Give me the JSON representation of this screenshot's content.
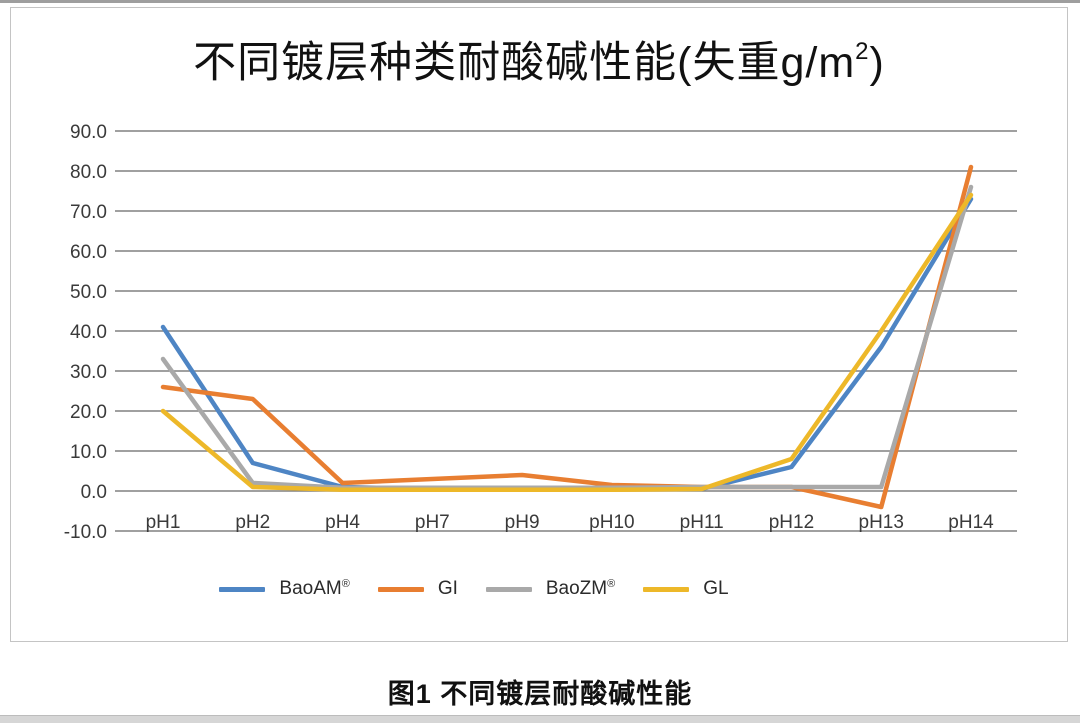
{
  "page": {
    "title_main": "不同镀层种类耐酸碱性能(失重g/m",
    "title_sup": "2",
    "title_close": ")",
    "caption": "图1 不同镀层耐酸碱性能"
  },
  "chart_data": {
    "type": "line",
    "title": "不同镀层种类耐酸碱性能(失重g/m²)",
    "categories": [
      "pH1",
      "pH2",
      "pH4",
      "pH7",
      "pH9",
      "pH10",
      "pH11",
      "pH12",
      "pH13",
      "pH14"
    ],
    "series": [
      {
        "name": "BaoAM",
        "name_sup": "®",
        "color": "#4E85C4",
        "values": [
          41,
          7,
          1,
          0.5,
          0.5,
          0.5,
          0.5,
          6,
          36,
          73
        ]
      },
      {
        "name": "GI",
        "name_sup": "",
        "color": "#E87E31",
        "values": [
          26,
          23,
          2,
          3,
          4,
          1.5,
          1,
          1,
          -4,
          81
        ]
      },
      {
        "name": "BaoZM",
        "name_sup": "®",
        "color": "#A9A9A9",
        "values": [
          33,
          2,
          0.8,
          0.8,
          0.8,
          0.8,
          1,
          1,
          1,
          76
        ]
      },
      {
        "name": "GL",
        "name_sup": "",
        "color": "#EDB829",
        "values": [
          20,
          1,
          0.3,
          0.3,
          0.3,
          0.3,
          0.5,
          8,
          40,
          74
        ]
      }
    ],
    "ylim": [
      -10,
      90
    ],
    "ytick_step": 10,
    "ytick_labels": [
      "90.0",
      "80.0",
      "70.0",
      "60.0",
      "50.0",
      "40.0",
      "30.0",
      "20.0",
      "10.0",
      "0.0",
      "-10.0"
    ],
    "xlabel": "",
    "ylabel": "",
    "grid": true,
    "legend_position": "bottom"
  },
  "style": {
    "grid_color": "#808080",
    "tick_text_color": "#3a3a3a",
    "line_width": 4.5,
    "top_strip_color": "#9e9e9e",
    "bottom_strip_color": "#d6d6d6",
    "box_border_color": "#c4c4c4"
  }
}
